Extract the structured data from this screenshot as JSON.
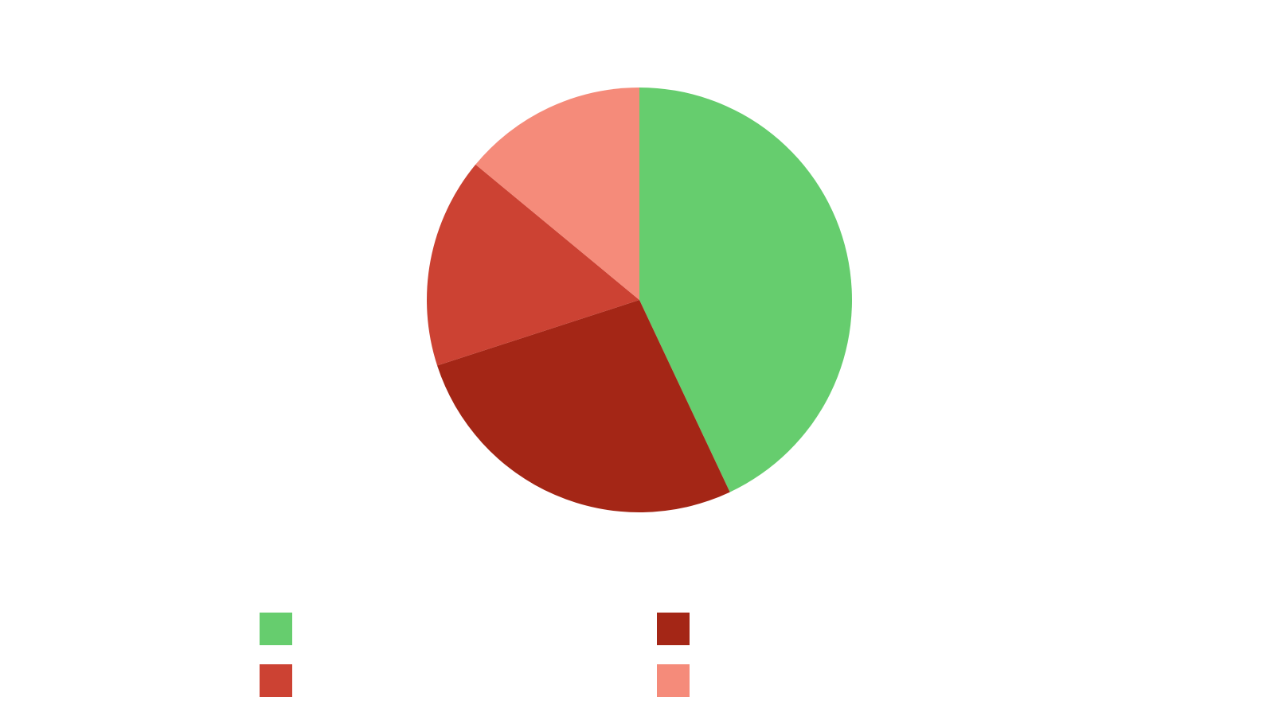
{
  "chart_data": {
    "type": "pie",
    "values": [
      43,
      27,
      16,
      14
    ],
    "colors": [
      "#66cd6e",
      "#a42616",
      "#cc4233",
      "#f58b7a"
    ]
  }
}
